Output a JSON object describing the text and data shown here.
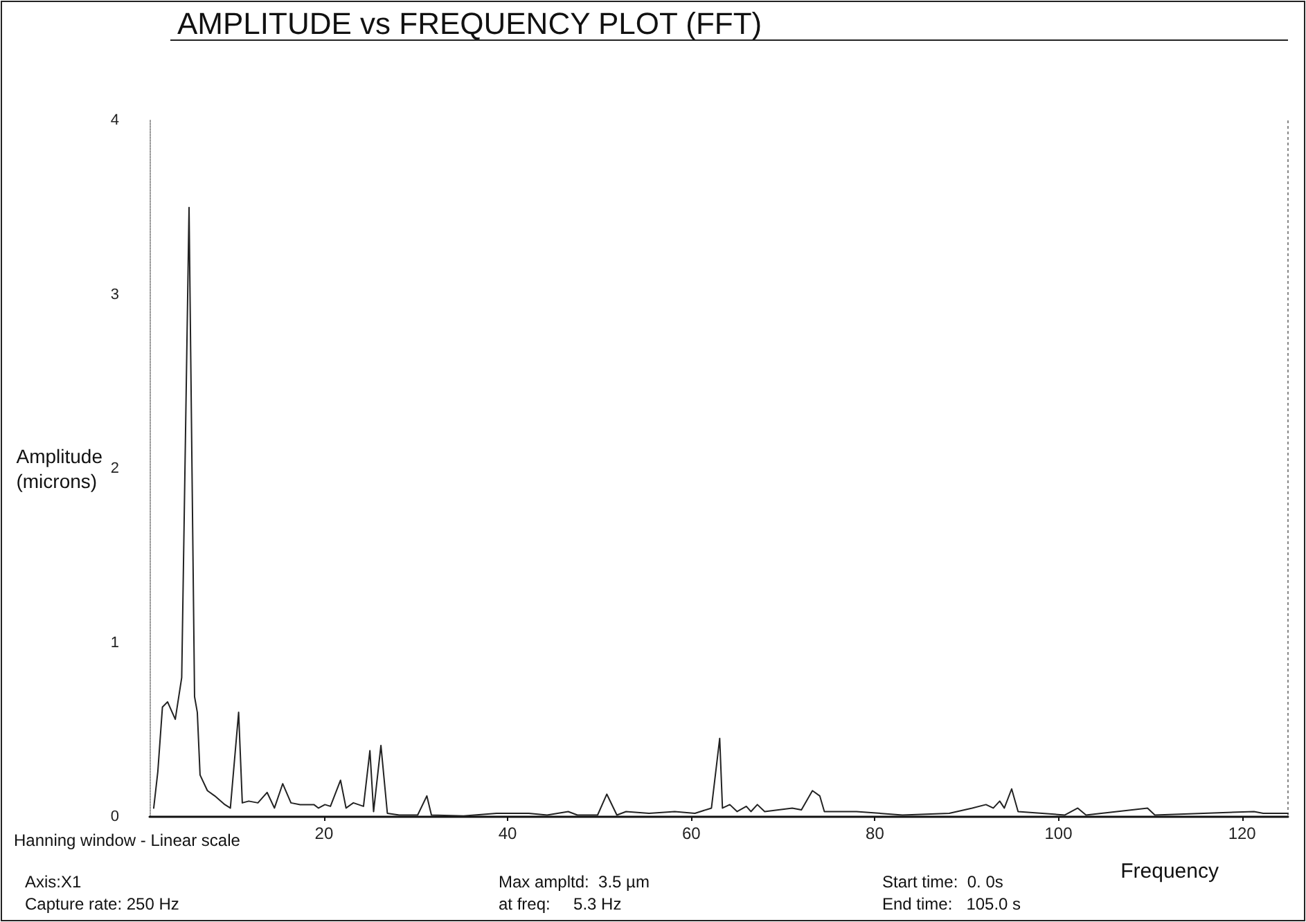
{
  "chart_data": {
    "type": "line",
    "title": "AMPLITUDE vs FREQUENCY PLOT (FFT)",
    "xlabel": "Frequency",
    "ylabel": "Amplitude\n(microns)",
    "annotations": [
      "Hanning window - Linear scale",
      "Axis:X1",
      "Capture rate: 250 Hz",
      "Max ampltd:  3.5 µm",
      "at freq:     5.3 Hz",
      "Start time:  0. 0s",
      "End time:   105.0 s"
    ],
    "series": [
      {
        "color": "#222222",
        "x": [
          1.45,
          1.9,
          2.4,
          2.96,
          3.8,
          4.5,
          5.3,
          5.9,
          6.2,
          6.5,
          7.3,
          8.1,
          9.2,
          9.8,
          10.7,
          11.1,
          11.8,
          12.8,
          13.8,
          14.6,
          15.5,
          16.4,
          17.4,
          18.9,
          19.4,
          20.1,
          20.7,
          21.8,
          22.4,
          23.2,
          24.3,
          25.0,
          25.4,
          26.2,
          26.9,
          28.2,
          30.2,
          31.2,
          31.7,
          35.2,
          38.8,
          42.3,
          44.3,
          46.6,
          47.6,
          49.8,
          50.8,
          51.9,
          52.9,
          55.4,
          58.2,
          60.4,
          62.2,
          63.1,
          63.4,
          64.2,
          65,
          66,
          66.5,
          67.2,
          68,
          71,
          72,
          73.2,
          74,
          74.5,
          78,
          83,
          88.1,
          90.6,
          92.1,
          92.9,
          93.6,
          94.1,
          94.9,
          95.6,
          100.7,
          102.1,
          103,
          109.7,
          110.5,
          121.3,
          122.3,
          125
        ],
        "values": [
          0.05,
          0.26,
          0.63,
          0.66,
          0.56,
          0.8,
          3.5,
          0.69,
          0.6,
          0.24,
          0.15,
          0.12,
          0.07,
          0.05,
          0.6,
          0.08,
          0.09,
          0.08,
          0.14,
          0.05,
          0.19,
          0.08,
          0.07,
          0.07,
          0.05,
          0.07,
          0.06,
          0.21,
          0.05,
          0.08,
          0.06,
          0.38,
          0.03,
          0.41,
          0.02,
          0.01,
          0.01,
          0.12,
          0.01,
          0.005,
          0.02,
          0.02,
          0.01,
          0.03,
          0.01,
          0.01,
          0.13,
          0.01,
          0.03,
          0.02,
          0.03,
          0.02,
          0.05,
          0.45,
          0.05,
          0.07,
          0.03,
          0.06,
          0.03,
          0.07,
          0.03,
          0.05,
          0.04,
          0.15,
          0.12,
          0.03,
          0.03,
          0.01,
          0.02,
          0.05,
          0.07,
          0.05,
          0.09,
          0.05,
          0.16,
          0.03,
          0.01,
          0.05,
          0.01,
          0.05,
          0.01,
          0.03,
          0.02,
          0.02
        ]
      }
    ],
    "xlim": [
      1,
      125
    ],
    "xticks": [
      20,
      40,
      60,
      80,
      100,
      120
    ],
    "ylim": [
      0,
      4
    ],
    "yticks": [
      0,
      1,
      2,
      3,
      4
    ],
    "grid": false,
    "marker": "none",
    "line_style": "solid"
  }
}
